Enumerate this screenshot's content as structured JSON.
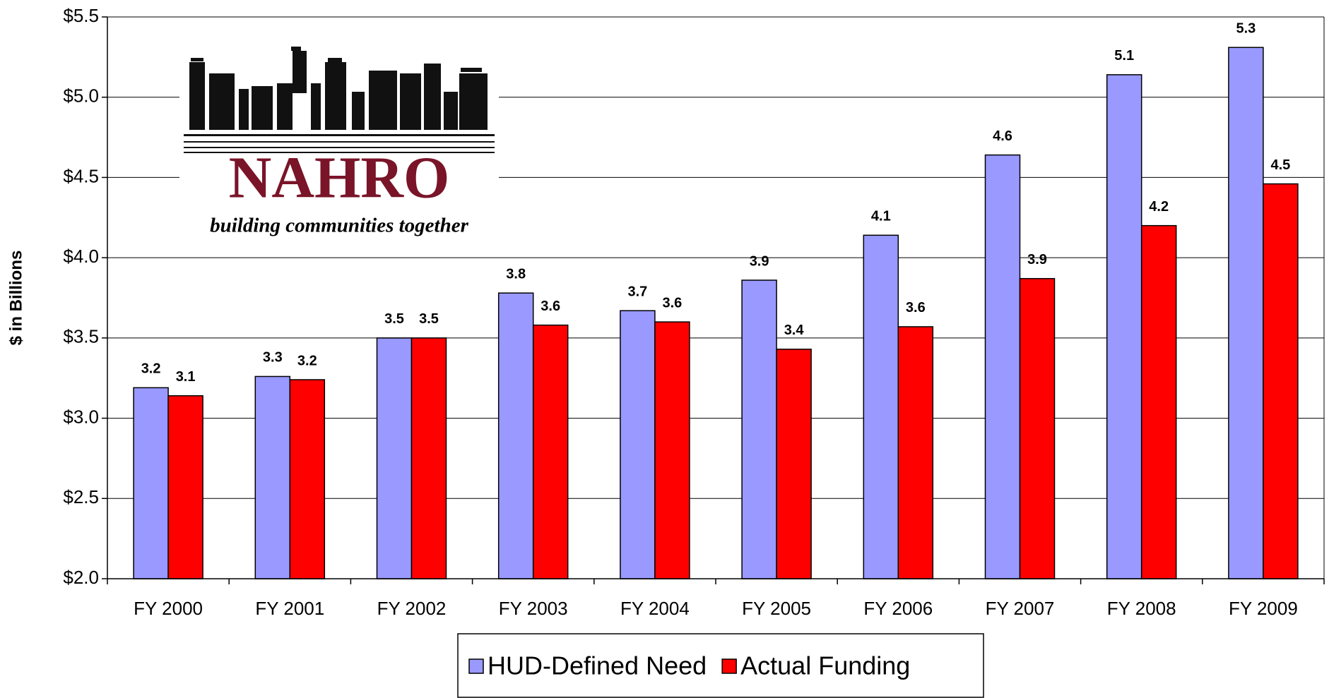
{
  "chart_data": {
    "type": "bar",
    "ylabel": "$ in Billions",
    "categories": [
      "FY 2000",
      "FY 2001",
      "FY 2002",
      "FY 2003",
      "FY 2004",
      "FY 2005",
      "FY 2006",
      "FY 2007",
      "FY 2008",
      "FY 2009"
    ],
    "series": [
      {
        "name": "HUD-Defined Need",
        "color": "#9999ff",
        "values": [
          3.19,
          3.26,
          3.5,
          3.78,
          3.67,
          3.86,
          4.14,
          4.64,
          5.14,
          5.31
        ],
        "value_labels": [
          "3.2",
          "3.3",
          "3.5",
          "3.8",
          "3.7",
          "3.9",
          "4.1",
          "4.6",
          "5.1",
          "5.3"
        ]
      },
      {
        "name": "Actual Funding",
        "color": "#ff0000",
        "values": [
          3.14,
          3.24,
          3.5,
          3.58,
          3.6,
          3.43,
          3.57,
          3.87,
          4.2,
          4.46
        ],
        "value_labels": [
          "3.1",
          "3.2",
          "3.5",
          "3.6",
          "3.6",
          "3.4",
          "3.6",
          "3.9",
          "4.2",
          "4.5"
        ]
      }
    ],
    "ylim": [
      2.0,
      5.5
    ],
    "yticks": [
      {
        "value": 2.0,
        "label": "$2.0"
      },
      {
        "value": 2.5,
        "label": "$2.5"
      },
      {
        "value": 3.0,
        "label": "$3.0"
      },
      {
        "value": 3.5,
        "label": "$3.5"
      },
      {
        "value": 4.0,
        "label": "$4.0"
      },
      {
        "value": 4.5,
        "label": "$4.5"
      },
      {
        "value": 5.0,
        "label": "$5.0"
      },
      {
        "value": 5.5,
        "label": "$5.5"
      }
    ],
    "grid": true,
    "legend": "bottom"
  },
  "logo": {
    "name": "NAHRO",
    "tagline": "building communities together"
  }
}
